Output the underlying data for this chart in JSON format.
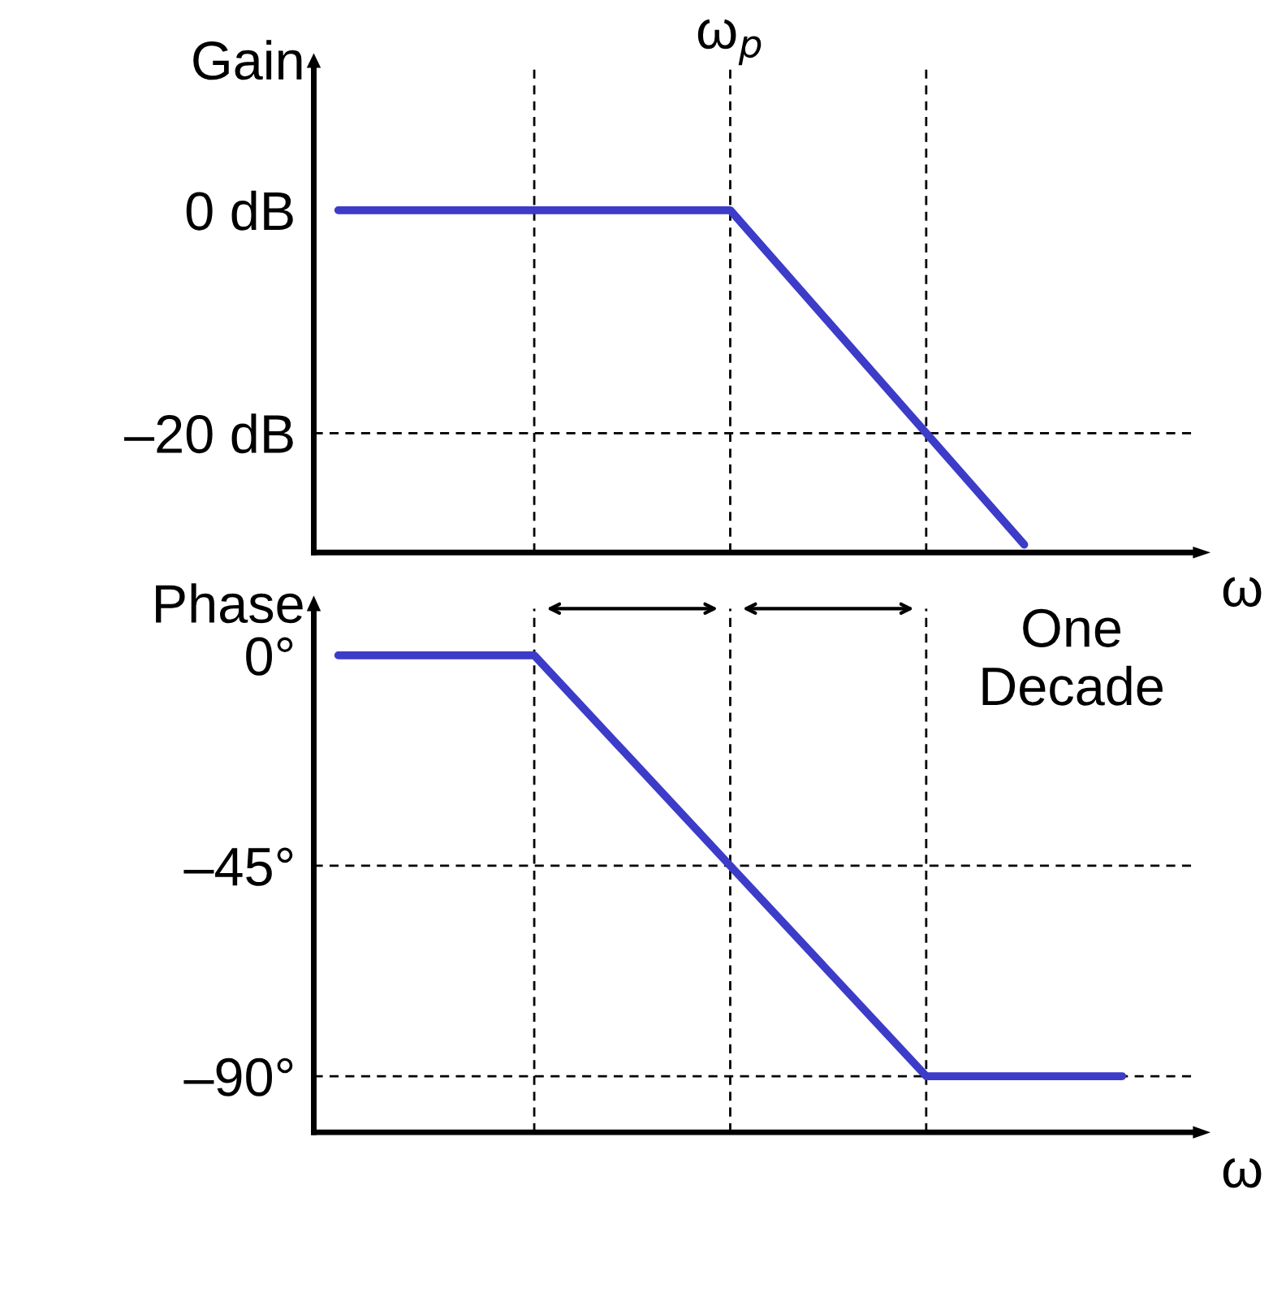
{
  "chart_data": [
    {
      "type": "line",
      "ylabel": "Gain",
      "xlabel": "ω",
      "categories": [
        null,
        null,
        null,
        null,
        null,
        null,
        null,
        null,
        null
      ],
      "series": [
        {
          "color": "#3c3cc8",
          "values": [
            0,
            0,
            0,
            0,
            0,
            -10,
            -20,
            -30,
            null
          ]
        }
      ],
      "ylim": [
        -30.7,
        13
      ],
      "yticks": [
        {
          "value": 0,
          "label": "0 dB"
        },
        {
          "value": -20,
          "label": "–20 dB"
        }
      ],
      "ref_lines": [
        {
          "axis": "y",
          "value": -20,
          "line_style": "dashed",
          "color": "#000000"
        }
      ],
      "annotations": [
        "ω$_{p}$"
      ],
      "grid": "x",
      "legend": false,
      "marker": "none",
      "line_style": "solid"
    },
    {
      "type": "line",
      "ylabel": "Phase",
      "xlabel": "ω",
      "categories": [
        null,
        null,
        null,
        null,
        null,
        null,
        null,
        null,
        null
      ],
      "series": [
        {
          "color": "#3c3cc8",
          "values": [
            0,
            0,
            0,
            -22.5,
            -45,
            -67.5,
            -90,
            -90,
            -90
          ]
        }
      ],
      "ylim": [
        -102,
        10
      ],
      "yticks": [
        {
          "value": 0,
          "label": "0°"
        },
        {
          "value": -45,
          "label": "–45°"
        },
        {
          "value": -90,
          "label": "–90°"
        }
      ],
      "ref_lines": [
        {
          "axis": "y",
          "value": -45,
          "line_style": "dashed",
          "color": "#000000"
        },
        {
          "axis": "y",
          "value": -90,
          "line_style": "dashed",
          "color": "#000000"
        }
      ],
      "annotations": [
        "One Decade"
      ],
      "grid": "x",
      "legend": false,
      "marker": "none",
      "line_style": "solid"
    }
  ]
}
